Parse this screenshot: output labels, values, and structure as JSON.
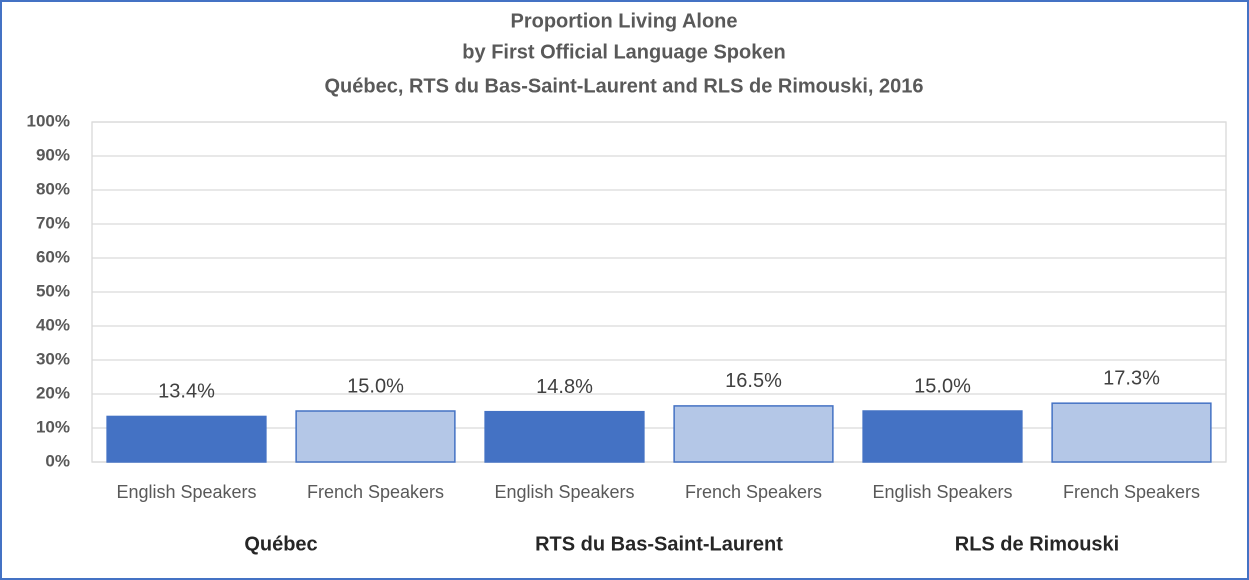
{
  "chart_data": {
    "type": "bar",
    "title": [
      "Proportion Living Alone",
      "by First Official Language Spoken",
      "Québec, RTS du Bas-Saint-Laurent and RLS de Rimouski, 2016"
    ],
    "categories": [
      "Québec",
      "RTS du Bas-Saint-Laurent",
      "RLS de Rimouski"
    ],
    "series": [
      {
        "name": "English Speakers",
        "color": "#4472c4",
        "edgecolor": "#4472c4",
        "values": [
          13.4,
          14.8,
          15.0
        ],
        "value_labels": [
          "13.4%",
          "14.8%",
          "15.0%"
        ]
      },
      {
        "name": "French Speakers",
        "color": "#b4c7e7",
        "edgecolor": "#4472c4",
        "values": [
          15.0,
          16.5,
          17.3
        ],
        "value_labels": [
          "15.0%",
          "16.5%",
          "17.3%"
        ]
      }
    ],
    "ylim": [
      0,
      100
    ],
    "yticks": [
      {
        "value": 0,
        "label": "0%"
      },
      {
        "value": 10,
        "label": "10%"
      },
      {
        "value": 20,
        "label": "20%"
      },
      {
        "value": 30,
        "label": "30%"
      },
      {
        "value": 40,
        "label": "40%"
      },
      {
        "value": 50,
        "label": "50%"
      },
      {
        "value": 60,
        "label": "60%"
      },
      {
        "value": 70,
        "label": "70%"
      },
      {
        "value": 80,
        "label": "80%"
      },
      {
        "value": 90,
        "label": "90%"
      },
      {
        "value": 100,
        "label": "100%"
      }
    ],
    "grid": true
  }
}
